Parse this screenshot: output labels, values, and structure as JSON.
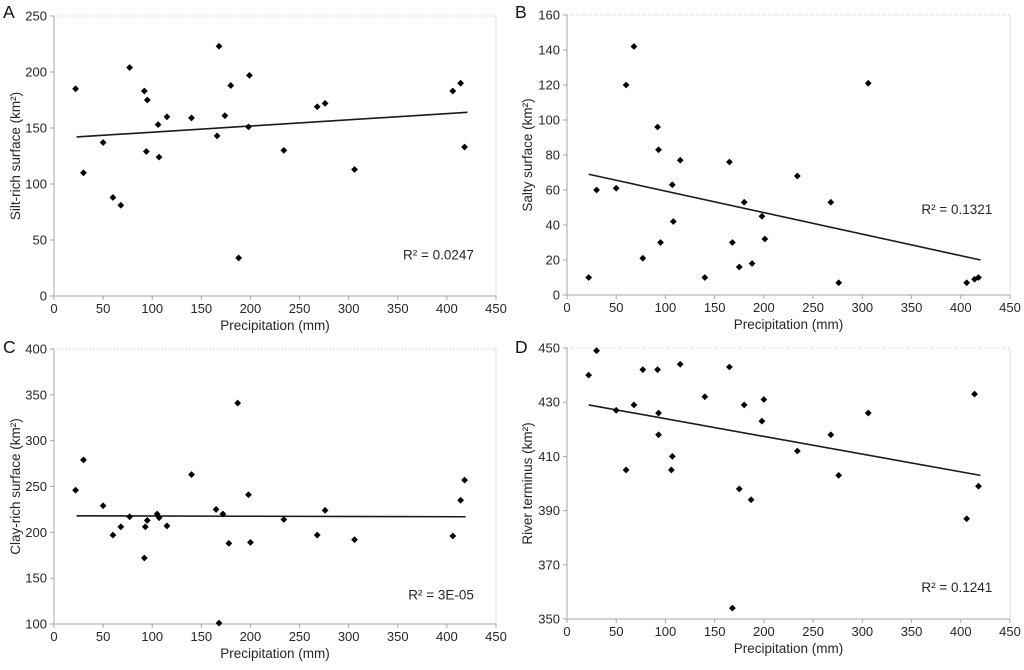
{
  "figure": {
    "background": "#ffffff",
    "point_color": "#000000",
    "trend_color": "#1a1a1a",
    "axis_color": "#a6a6a6",
    "gridline_color": "#c0c0c0",
    "text_color": "#262626",
    "panel_letter_color": "#111111"
  },
  "chart_data": [
    {
      "panel": "A",
      "type": "scatter",
      "title": "",
      "xlabel": "Precipitation (mm)",
      "ylabel": "Silt-rich surface (km²)",
      "xlim": [
        0,
        450
      ],
      "ylim": [
        0,
        250
      ],
      "xticks": [
        0,
        50,
        100,
        150,
        200,
        250,
        300,
        350,
        400,
        450
      ],
      "yticks": [
        0,
        50,
        100,
        150,
        200,
        250
      ],
      "r2_label": "R² = 0.0247",
      "legend": "none",
      "grid": "top-dotted-only",
      "trend": {
        "x": [
          23,
          421
        ],
        "y": [
          142,
          164
        ]
      },
      "points": [
        [
          22,
          185
        ],
        [
          30,
          110
        ],
        [
          50,
          137
        ],
        [
          60,
          88
        ],
        [
          68,
          81
        ],
        [
          77,
          204
        ],
        [
          92,
          183
        ],
        [
          95,
          175
        ],
        [
          94,
          129
        ],
        [
          106,
          153
        ],
        [
          107,
          124
        ],
        [
          115,
          160
        ],
        [
          140,
          159
        ],
        [
          166,
          143
        ],
        [
          168,
          223
        ],
        [
          174,
          161
        ],
        [
          180,
          188
        ],
        [
          188,
          34
        ],
        [
          198,
          151
        ],
        [
          199,
          197
        ],
        [
          234,
          130
        ],
        [
          268,
          169
        ],
        [
          276,
          172
        ],
        [
          306,
          113
        ],
        [
          406,
          183
        ],
        [
          414,
          190
        ],
        [
          418,
          133
        ]
      ]
    },
    {
      "panel": "B",
      "type": "scatter",
      "title": "",
      "xlabel": "Precipitation (mm)",
      "ylabel": "Salty surface (km²)",
      "xlim": [
        0,
        450
      ],
      "ylim": [
        0,
        160
      ],
      "xticks": [
        0,
        50,
        100,
        150,
        200,
        250,
        300,
        350,
        400,
        450
      ],
      "yticks": [
        0,
        20,
        40,
        60,
        80,
        100,
        120,
        140,
        160
      ],
      "r2_label": "R² = 0.1321",
      "legend": "none",
      "grid": "top-dotted-only",
      "trend": {
        "x": [
          22,
          420
        ],
        "y": [
          69,
          20
        ]
      },
      "points": [
        [
          22,
          10
        ],
        [
          30,
          60
        ],
        [
          50,
          61
        ],
        [
          60,
          120
        ],
        [
          68,
          142
        ],
        [
          77,
          21
        ],
        [
          92,
          96
        ],
        [
          93,
          83
        ],
        [
          95,
          30
        ],
        [
          107,
          63
        ],
        [
          108,
          42
        ],
        [
          115,
          77
        ],
        [
          140,
          10
        ],
        [
          165,
          76
        ],
        [
          168,
          30
        ],
        [
          175,
          16
        ],
        [
          180,
          53
        ],
        [
          188,
          18
        ],
        [
          198,
          45
        ],
        [
          201,
          32
        ],
        [
          234,
          68
        ],
        [
          268,
          53
        ],
        [
          276,
          7
        ],
        [
          306,
          121
        ],
        [
          406,
          7
        ],
        [
          414,
          9
        ],
        [
          418,
          10
        ]
      ]
    },
    {
      "panel": "C",
      "type": "scatter",
      "title": "",
      "xlabel": "Precipitation (mm)",
      "ylabel": "Clay-rich surface (km²)",
      "xlim": [
        0,
        450
      ],
      "ylim": [
        100,
        400
      ],
      "xticks": [
        0,
        50,
        100,
        150,
        200,
        250,
        300,
        350,
        400,
        450
      ],
      "yticks": [
        100,
        150,
        200,
        250,
        300,
        350,
        400
      ],
      "r2_label": "R² = 3E-05",
      "legend": "none",
      "grid": "top-dotted-only",
      "trend": {
        "x": [
          23,
          419
        ],
        "y": [
          218,
          217
        ]
      },
      "points": [
        [
          22,
          246
        ],
        [
          30,
          279
        ],
        [
          50,
          229
        ],
        [
          60,
          197
        ],
        [
          68,
          206
        ],
        [
          77,
          217
        ],
        [
          92,
          172
        ],
        [
          93,
          206
        ],
        [
          95,
          213
        ],
        [
          105,
          220
        ],
        [
          107,
          216
        ],
        [
          115,
          207
        ],
        [
          140,
          263
        ],
        [
          165,
          225
        ],
        [
          168,
          101
        ],
        [
          172,
          220
        ],
        [
          178,
          188
        ],
        [
          187,
          341
        ],
        [
          198,
          241
        ],
        [
          200,
          189
        ],
        [
          234,
          214
        ],
        [
          268,
          197
        ],
        [
          276,
          224
        ],
        [
          306,
          192
        ],
        [
          406,
          196
        ],
        [
          414,
          235
        ],
        [
          418,
          257
        ]
      ]
    },
    {
      "panel": "D",
      "type": "scatter",
      "title": "",
      "xlabel": "Precipitation (mm)",
      "ylabel": "River terminus (km²)",
      "xlim": [
        0,
        450
      ],
      "ylim": [
        350,
        450
      ],
      "xticks": [
        0,
        50,
        100,
        150,
        200,
        250,
        300,
        350,
        400,
        450
      ],
      "yticks": [
        350,
        370,
        390,
        410,
        430,
        450
      ],
      "r2_label": "R² = 0.1241",
      "legend": "none",
      "grid": "top-dotted-only",
      "trend": {
        "x": [
          22,
          420
        ],
        "y": [
          429,
          403
        ]
      },
      "points": [
        [
          22,
          440
        ],
        [
          30,
          449
        ],
        [
          50,
          427
        ],
        [
          60,
          405
        ],
        [
          68,
          429
        ],
        [
          77,
          442
        ],
        [
          92,
          442
        ],
        [
          93,
          426
        ],
        [
          93,
          418
        ],
        [
          106,
          405
        ],
        [
          107,
          410
        ],
        [
          115,
          444
        ],
        [
          140,
          432
        ],
        [
          165,
          443
        ],
        [
          168,
          354
        ],
        [
          175,
          398
        ],
        [
          180,
          429
        ],
        [
          187,
          394
        ],
        [
          198,
          423
        ],
        [
          200,
          431
        ],
        [
          234,
          412
        ],
        [
          268,
          418
        ],
        [
          276,
          403
        ],
        [
          306,
          426
        ],
        [
          406,
          387
        ],
        [
          414,
          433
        ],
        [
          418,
          399
        ]
      ]
    }
  ]
}
